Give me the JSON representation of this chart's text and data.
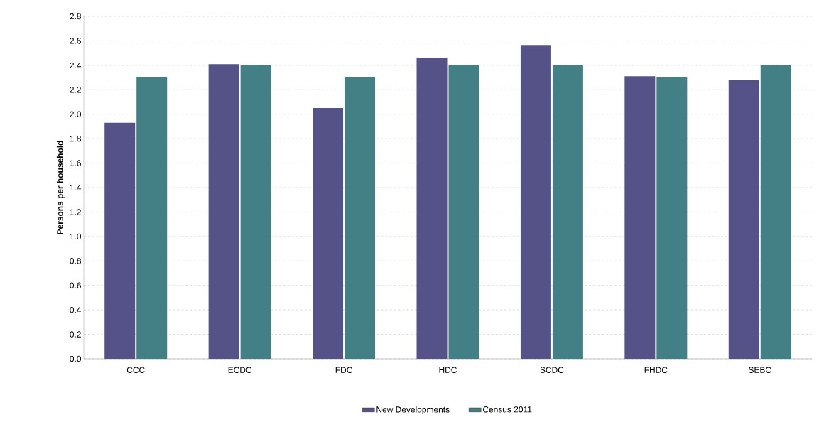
{
  "chart_data": {
    "type": "bar",
    "ylabel": "Persons per household",
    "categories": [
      "CCC",
      "ECDC",
      "FDC",
      "HDC",
      "SCDC",
      "FHDC",
      "SEBC"
    ],
    "series": [
      {
        "name": "New Developments",
        "color": "#545287",
        "values": [
          1.93,
          2.41,
          2.05,
          2.46,
          2.56,
          2.31,
          2.28
        ]
      },
      {
        "name": "Census 2011",
        "color": "#438086",
        "values": [
          2.3,
          2.4,
          2.3,
          2.4,
          2.4,
          2.3,
          2.4
        ]
      }
    ],
    "ylim": [
      0,
      2.8
    ],
    "yticks": [
      {
        "value": 0,
        "label": "0.0"
      },
      {
        "value": 0.2,
        "label": "0.2"
      },
      {
        "value": 0.4,
        "label": "0.4"
      },
      {
        "value": 0.6,
        "label": "0.6"
      },
      {
        "value": 0.8,
        "label": "0.8"
      },
      {
        "value": 1.0,
        "label": "1.0"
      },
      {
        "value": 1.2,
        "label": "1.2"
      },
      {
        "value": 1.4,
        "label": "1.4"
      },
      {
        "value": 1.6,
        "label": "1.6"
      },
      {
        "value": 1.8,
        "label": "1.8"
      },
      {
        "value": 2.0,
        "label": "2.0"
      },
      {
        "value": 2.2,
        "label": "2.2"
      },
      {
        "value": 2.4,
        "label": "2.4"
      },
      {
        "value": 2.6,
        "label": "2.6"
      },
      {
        "value": 2.8,
        "label": "2.8"
      }
    ],
    "grid": "y",
    "legend": "bottom"
  }
}
